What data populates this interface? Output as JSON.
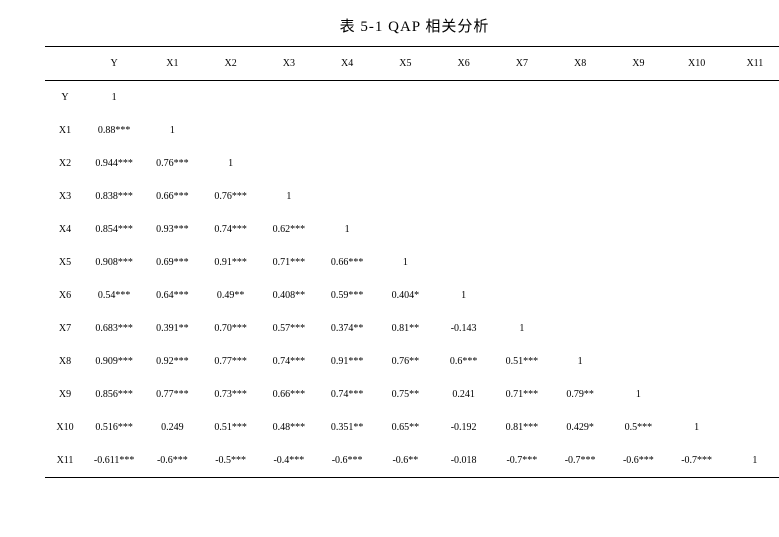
{
  "title": "表 5-1 QAP 相关分析",
  "columns": [
    "",
    "Y",
    "X1",
    "X2",
    "X3",
    "X4",
    "X5",
    "X6",
    "X7",
    "X8",
    "X9",
    "X10",
    "X11"
  ],
  "rows": [
    {
      "label": "Y",
      "cells": [
        "1",
        "",
        "",
        "",
        "",
        "",
        "",
        "",
        "",
        "",
        "",
        ""
      ]
    },
    {
      "label": "X1",
      "cells": [
        "0.88***",
        "1",
        "",
        "",
        "",
        "",
        "",
        "",
        "",
        "",
        "",
        ""
      ]
    },
    {
      "label": "X2",
      "cells": [
        "0.944***",
        "0.76***",
        "1",
        "",
        "",
        "",
        "",
        "",
        "",
        "",
        "",
        ""
      ]
    },
    {
      "label": "X3",
      "cells": [
        "0.838***",
        "0.66***",
        "0.76***",
        "1",
        "",
        "",
        "",
        "",
        "",
        "",
        "",
        ""
      ]
    },
    {
      "label": "X4",
      "cells": [
        "0.854***",
        "0.93***",
        "0.74***",
        "0.62***",
        "1",
        "",
        "",
        "",
        "",
        "",
        "",
        ""
      ]
    },
    {
      "label": "X5",
      "cells": [
        "0.908***",
        "0.69***",
        "0.91***",
        "0.71***",
        "0.66***",
        "1",
        "",
        "",
        "",
        "",
        "",
        ""
      ]
    },
    {
      "label": "X6",
      "cells": [
        "0.54***",
        "0.64***",
        "0.49**",
        "0.408**",
        "0.59***",
        "0.404*",
        "1",
        "",
        "",
        "",
        "",
        ""
      ]
    },
    {
      "label": "X7",
      "cells": [
        "0.683***",
        "0.391**",
        "0.70***",
        "0.57***",
        "0.374**",
        "0.81**",
        "-0.143",
        "1",
        "",
        "",
        "",
        ""
      ]
    },
    {
      "label": "X8",
      "cells": [
        "0.909***",
        "0.92***",
        "0.77***",
        "0.74***",
        "0.91***",
        "0.76**",
        "0.6***",
        "0.51***",
        "1",
        "",
        "",
        ""
      ]
    },
    {
      "label": "X9",
      "cells": [
        "0.856***",
        "0.77***",
        "0.73***",
        "0.66***",
        "0.74***",
        "0.75**",
        "0.241",
        "0.71***",
        "0.79**",
        "1",
        "",
        ""
      ]
    },
    {
      "label": "X10",
      "cells": [
        "0.516***",
        "0.249",
        "0.51***",
        "0.48***",
        "0.351**",
        "0.65**",
        "-0.192",
        "0.81***",
        "0.429*",
        "0.5***",
        "1",
        ""
      ]
    },
    {
      "label": "X11",
      "cells": [
        "-0.611***",
        "-0.6***",
        "-0.5***",
        "-0.4***",
        "-0.6***",
        "-0.6**",
        "-0.018",
        "-0.7***",
        "-0.7***",
        "-0.6***",
        "-0.7***",
        "1"
      ]
    }
  ]
}
